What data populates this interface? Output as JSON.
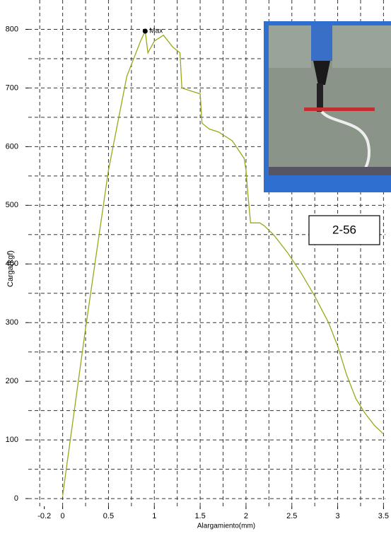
{
  "chart_data": {
    "type": "line",
    "x_label": "Alargamiento(mm)",
    "y_label": "Carga(kgf)",
    "xlim": [
      -0.375,
      3.52
    ],
    "ylim": [
      -18,
      850
    ],
    "xticks": [
      -0.2,
      0,
      0.5,
      1,
      1.5,
      2,
      2.5,
      3,
      3.5
    ],
    "yticks": [
      0,
      100,
      200,
      300,
      400,
      500,
      600,
      700,
      800
    ],
    "xgrid": [
      -0.25,
      0,
      0.25,
      0.5,
      0.75,
      1,
      1.25,
      1.5,
      1.75,
      2,
      2.25,
      2.5,
      2.75,
      3,
      3.25,
      3.5
    ],
    "ygrid": [
      0,
      50,
      100,
      150,
      200,
      250,
      300,
      350,
      400,
      450,
      500,
      550,
      600,
      650,
      700,
      750,
      800
    ],
    "grid": true,
    "series": [
      {
        "color": "#9aa81a",
        "x": [
          0,
          0.25,
          0.5,
          0.7,
          0.85,
          0.9,
          0.93,
          1.0,
          1.1,
          1.2,
          1.28,
          1.3,
          1.4,
          1.5,
          1.52,
          1.6,
          1.7,
          1.85,
          1.98,
          2.0,
          2.02,
          2.05,
          2.15,
          2.2,
          2.3,
          2.45,
          2.6,
          2.75,
          2.9,
          3.0,
          3.1,
          3.2,
          3.3,
          3.4,
          3.5
        ],
        "values": [
          5,
          290,
          560,
          720,
          780,
          797,
          760,
          780,
          790,
          770,
          760,
          700,
          695,
          690,
          640,
          630,
          625,
          610,
          580,
          560,
          520,
          470,
          470,
          465,
          450,
          420,
          385,
          345,
          300,
          260,
          210,
          170,
          145,
          125,
          110
        ]
      }
    ],
    "max_point": {
      "label": "Max",
      "x": 0.9,
      "value": 797
    },
    "specimen_label": "2-56"
  }
}
